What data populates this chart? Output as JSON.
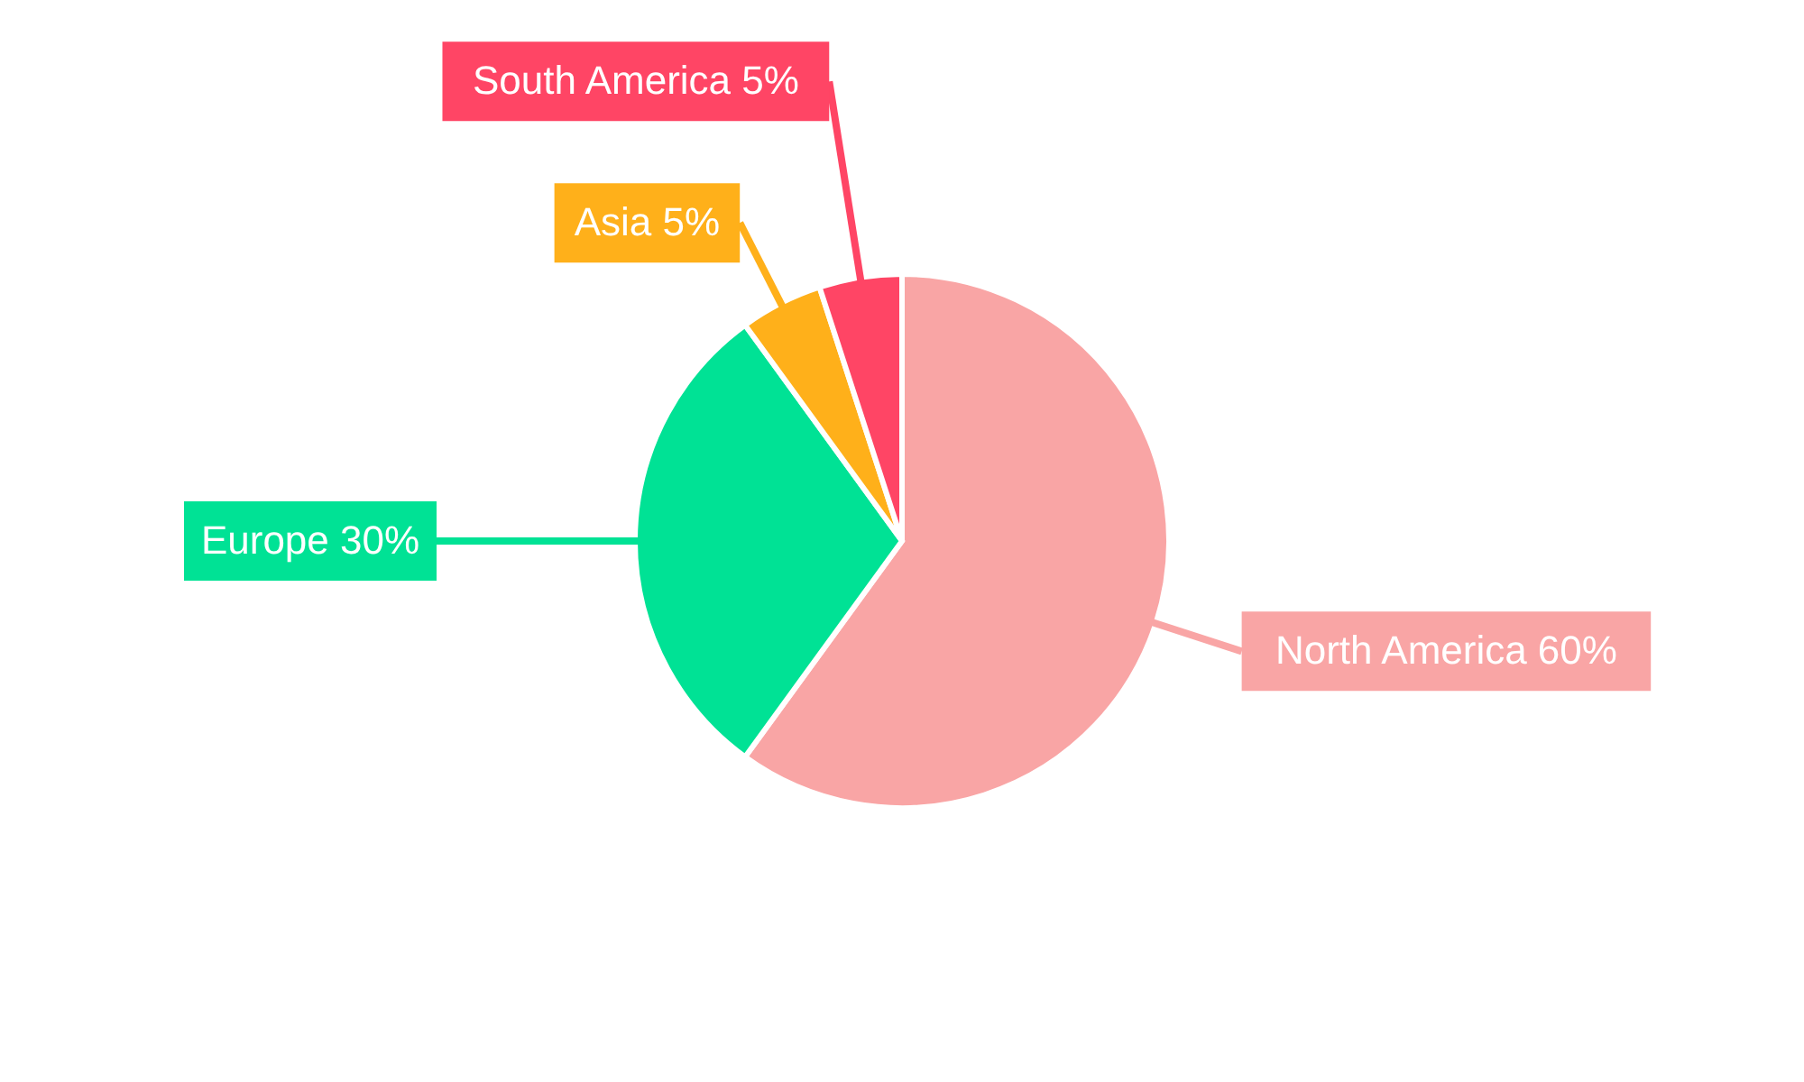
{
  "chart_data": {
    "type": "pie",
    "categories": [
      "North America",
      "Europe",
      "Asia",
      "South America"
    ],
    "values": [
      60,
      30,
      5,
      5
    ],
    "value_labels": [
      "60%",
      "30%",
      "5%",
      "5%"
    ],
    "colors": [
      "#f9a5a5",
      "#00e295",
      "#ffb01a",
      "#ff4565"
    ]
  }
}
